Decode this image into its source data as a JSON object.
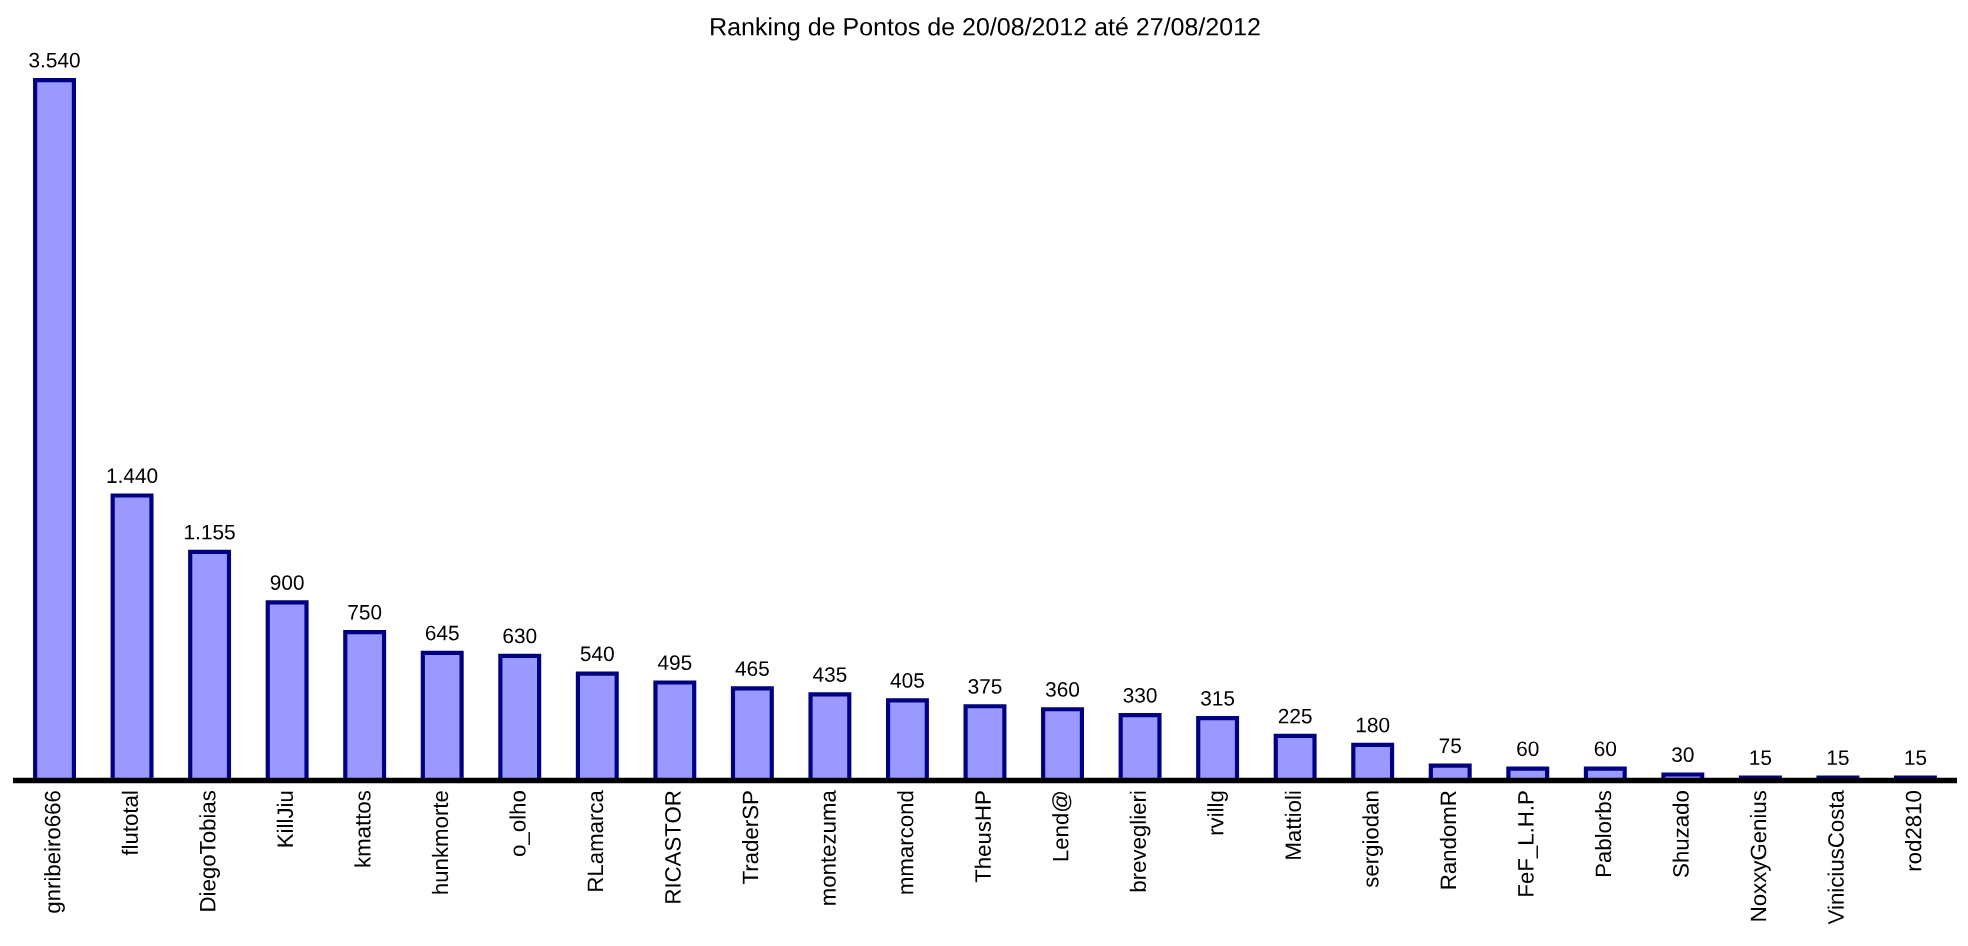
{
  "chart_data": {
    "type": "bar",
    "title": "Ranking de Pontos de 20/08/2012 até 27/08/2012",
    "categories": [
      "gnribeiro666",
      "flutotal",
      "DiegoTobias",
      "KillJiu",
      "kmattos",
      "hunkmorte",
      "o_olho",
      "RLamarca",
      "RICASTOR",
      "TraderSP",
      "montezuma",
      "mmarcond",
      "TheusHP",
      "Lend@",
      "breveglieri",
      "rvillg",
      "Mattioli",
      "sergiodan",
      "RandomR",
      "FeF_L.H.P",
      "Pablorbs",
      "Shuzado",
      "NoxxyGenius",
      "ViniciusCosta",
      "rod2810"
    ],
    "values": [
      3540,
      1440,
      1155,
      900,
      750,
      645,
      630,
      540,
      495,
      465,
      435,
      405,
      375,
      360,
      330,
      315,
      225,
      180,
      75,
      60,
      60,
      30,
      15,
      15,
      15
    ],
    "value_labels": [
      "3.540",
      "1.440",
      "1.155",
      "900",
      "750",
      "645",
      "630",
      "540",
      "495",
      "465",
      "435",
      "405",
      "375",
      "360",
      "330",
      "315",
      "225",
      "180",
      "75",
      "60",
      "60",
      "30",
      "15",
      "15",
      "15"
    ],
    "color": "#9999ff",
    "grid": false,
    "legend": false
  }
}
